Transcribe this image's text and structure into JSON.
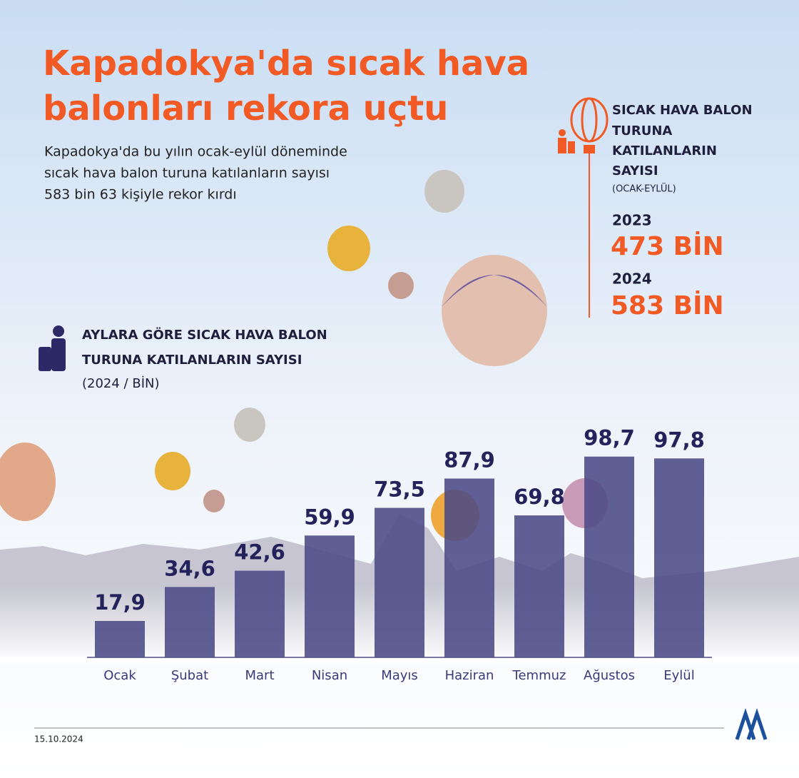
{
  "header": {
    "title_lines": [
      "Kapadokya'da sıcak hava",
      "balonları rekora uçtu"
    ],
    "subtitle_lines": [
      "Kapadokya'da bu yılın ocak-eylül döneminde",
      "sıcak hava balon turuna katılanların sayısı",
      "583 bin 63 kişiyle rekor kırdı"
    ]
  },
  "summary": {
    "title_lines": [
      "SICAK HAVA BALON",
      "TURUNA",
      "KATILANLARIN",
      "SAYISI"
    ],
    "period": "(OCAK-EYLÜL)",
    "items": [
      {
        "year": "2023",
        "value": "473 BİN"
      },
      {
        "year": "2024",
        "value": "583 BİN"
      }
    ]
  },
  "chart_data": {
    "type": "bar",
    "title_lines": [
      "AYLARA GÖRE SICAK HAVA BALON",
      "TURUNA KATILANLARIN SAYISI"
    ],
    "subtitle": "(2024 / BİN)",
    "categories": [
      "Ocak",
      "Şubat",
      "Mart",
      "Nisan",
      "Mayıs",
      "Haziran",
      "Temmuz",
      "Ağustos",
      "Eylül"
    ],
    "values": [
      17.9,
      34.6,
      42.6,
      59.9,
      73.5,
      87.9,
      69.8,
      98.7,
      97.8
    ],
    "value_labels": [
      "17,9",
      "34,6",
      "42,6",
      "59,9",
      "73,5",
      "87,9",
      "69,8",
      "98,7",
      "97,8"
    ],
    "color": "#4b4a86"
  },
  "footer": {
    "date": "15.10.2024"
  }
}
